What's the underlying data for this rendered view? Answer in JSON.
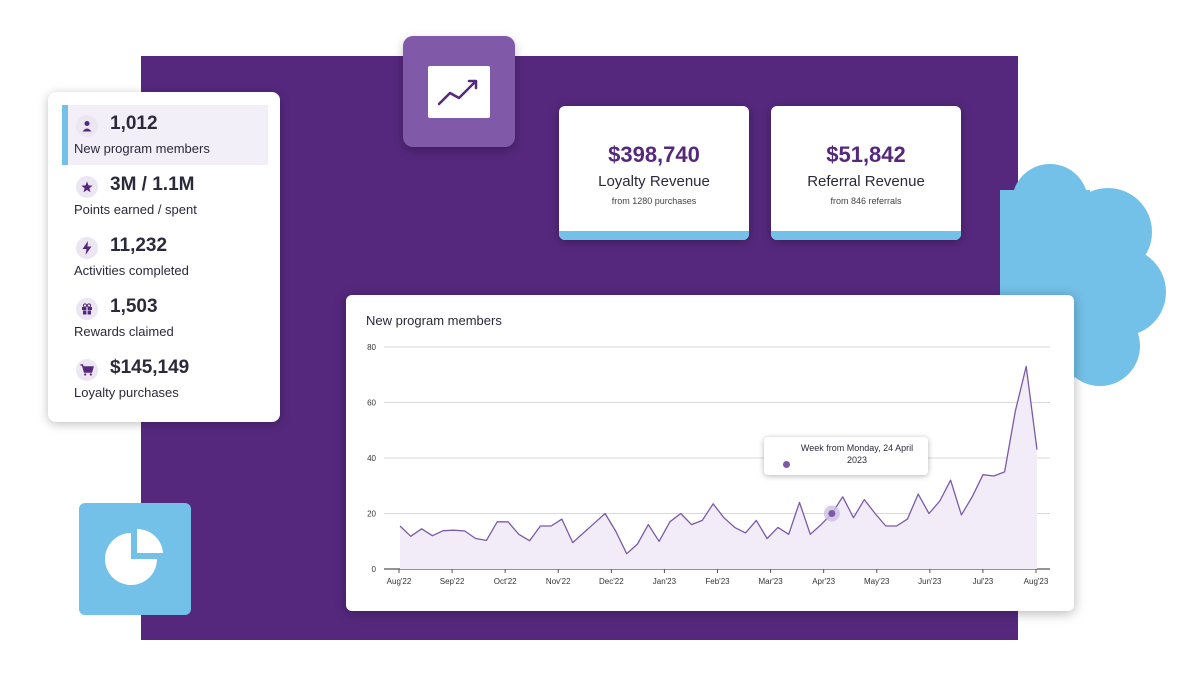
{
  "colors": {
    "panel": "#55287d",
    "accent_blue": "#73c0e8",
    "accent_purple": "#8059a8",
    "line": "#7c5aa8"
  },
  "stats": [
    {
      "icon": "person-icon",
      "value": "1,012",
      "label": "New program members",
      "active": true
    },
    {
      "icon": "star-icon",
      "value": "3M / 1.1M",
      "label": "Points earned / spent",
      "active": false
    },
    {
      "icon": "lightning-icon",
      "value": "11,232",
      "label": "Activities completed",
      "active": false
    },
    {
      "icon": "gift-icon",
      "value": "1,503",
      "label": "Rewards claimed",
      "active": false
    },
    {
      "icon": "cart-icon",
      "value": "$145,149",
      "label": "Loyalty purchases",
      "active": false
    }
  ],
  "revenue": [
    {
      "amount": "$398,740",
      "name": "Loyalty Revenue",
      "sub": "from 1280 purchases"
    },
    {
      "amount": "$51,842",
      "name": "Referral Revenue",
      "sub": "from 846 referrals"
    }
  ],
  "decor": {
    "trend_tile_icon": "trending-up-icon",
    "pie_tile_icon": "pie-chart-icon"
  },
  "chart": {
    "title": "New program members",
    "tooltip": "Week from Monday, 24 April 2023"
  },
  "chart_data": {
    "type": "area",
    "title": "New program members",
    "xlabel": "",
    "ylabel": "",
    "ylim": [
      0,
      80
    ],
    "yticks": [
      0,
      20,
      40,
      60,
      80
    ],
    "x_tick_labels": [
      "Aug'22",
      "Sep'22",
      "Oct'22",
      "Nov'22",
      "Dec'22",
      "Jan'23",
      "Feb'23",
      "Mar'23",
      "Apr'23",
      "May'23",
      "Jun'23",
      "Jul'23",
      "Aug'23"
    ],
    "grid": true,
    "legend": "none",
    "highlighted_point_index": 40,
    "series": [
      {
        "values": [
          15.5,
          11.8,
          14.5,
          12,
          13.8,
          14,
          13.7,
          11,
          10.3,
          17,
          17,
          12.5,
          10.2,
          15.5,
          15.5,
          18,
          9.5,
          13,
          16.5,
          20,
          13.5,
          5.5,
          9,
          16,
          10,
          17,
          20,
          16,
          17.5,
          23.5,
          18.5,
          15,
          13,
          17.5,
          11,
          15,
          12.5,
          24,
          12.5,
          16,
          20,
          26,
          18.5,
          25,
          20,
          15.5,
          15.5,
          18,
          27,
          20,
          24.5,
          32,
          19.5,
          26,
          34,
          33.5,
          35,
          57,
          73,
          43
        ]
      }
    ]
  }
}
